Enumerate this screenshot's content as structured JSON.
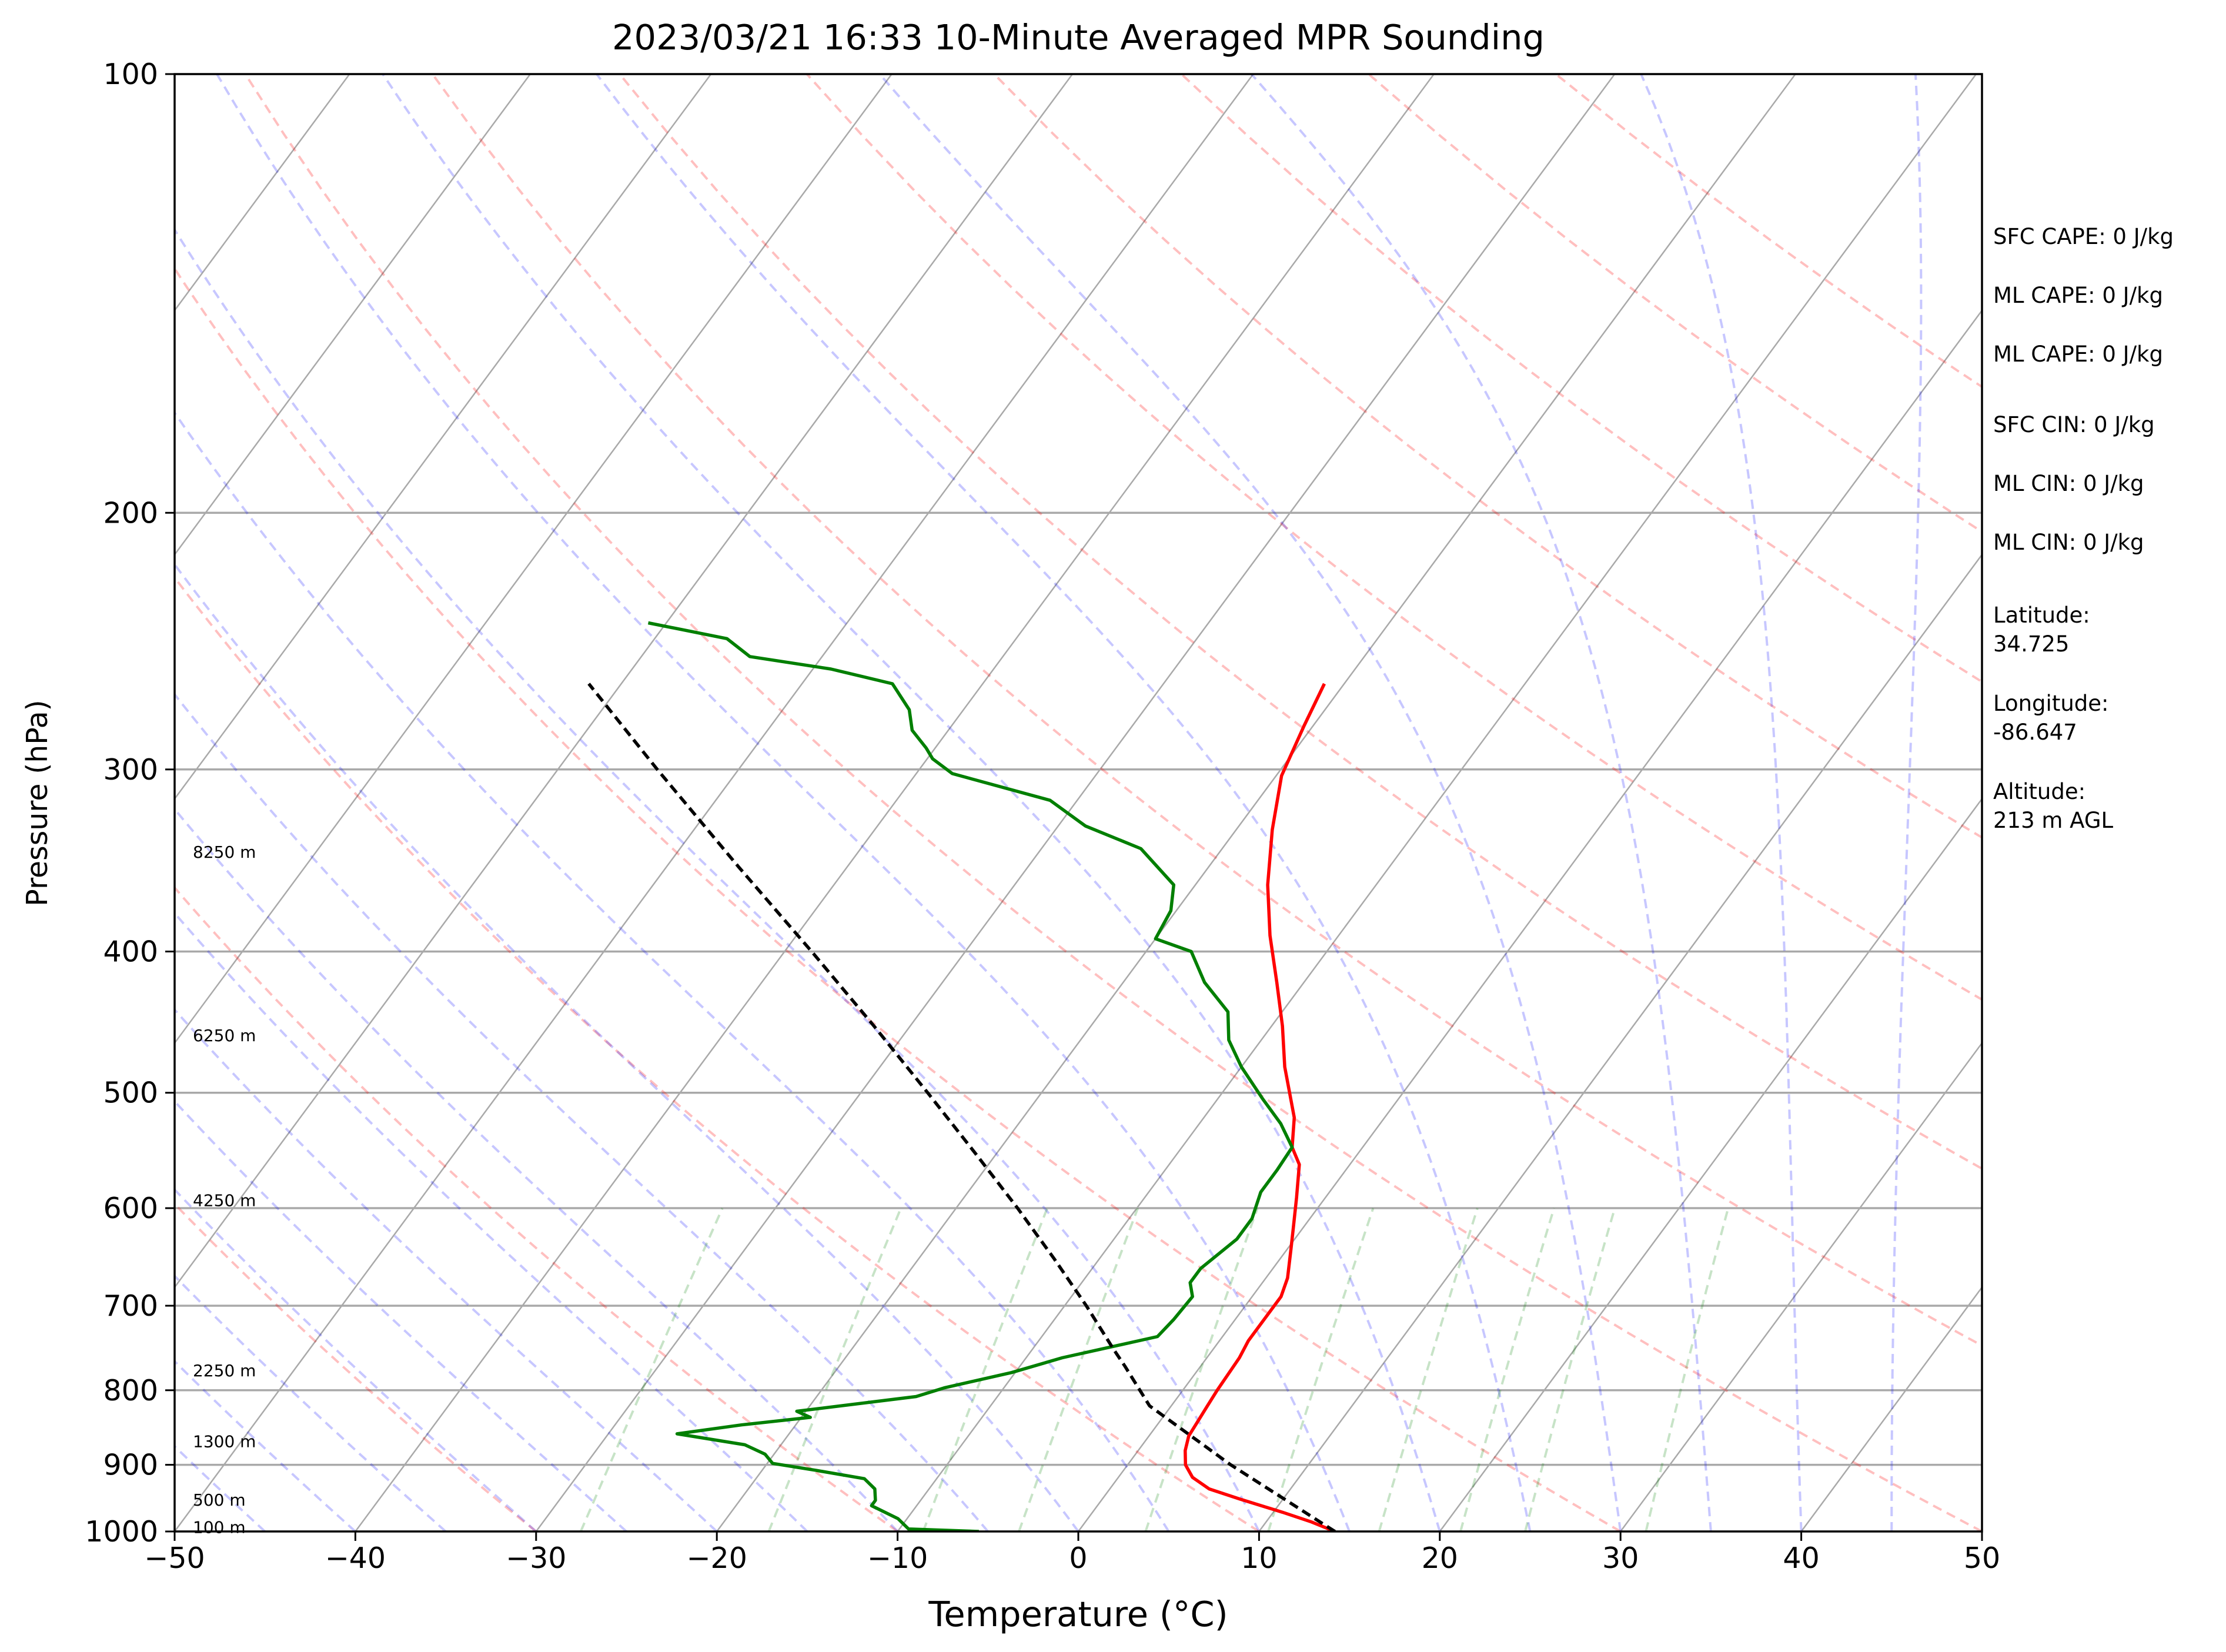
{
  "chart_data": {
    "type": "line",
    "title": "2023/03/21 16:33 10-Minute Averaged MPR Sounding",
    "xlabel": "Temperature (°C)",
    "ylabel": "Pressure (hPa)",
    "xlim": [
      -50,
      50
    ],
    "ylim": [
      1000,
      100
    ],
    "y_scale": "log",
    "x_ticks": [
      "−50",
      "−40",
      "−30",
      "−20",
      "−10",
      "0",
      "10",
      "20",
      "30",
      "40",
      "50"
    ],
    "y_ticks": [
      "1000",
      "900",
      "800",
      "700",
      "600",
      "500",
      "400",
      "300",
      "200",
      "100"
    ],
    "height_labels": [
      {
        "text": "100 m",
        "p": 994
      },
      {
        "text": "500 m",
        "p": 952
      },
      {
        "text": "1300 m",
        "p": 868
      },
      {
        "text": "2250 m",
        "p": 776
      },
      {
        "text": "4250 m",
        "p": 593
      },
      {
        "text": "6250 m",
        "p": 457
      },
      {
        "text": "8250 m",
        "p": 342
      }
    ],
    "grid": true,
    "series": [
      {
        "name": "",
        "role": "temperature",
        "color": "#ff0000",
        "points": [
          {
            "p": 1000,
            "t": 14.2
          },
          {
            "p": 985,
            "t": 12.5
          },
          {
            "p": 970,
            "t": 10.5
          },
          {
            "p": 950,
            "t": 7.6
          },
          {
            "p": 935,
            "t": 5.5
          },
          {
            "p": 918,
            "t": 4.1
          },
          {
            "p": 900,
            "t": 3.2
          },
          {
            "p": 880,
            "t": 2.6
          },
          {
            "p": 860,
            "t": 2.2
          },
          {
            "p": 840,
            "t": 2.1
          },
          {
            "p": 820,
            "t": 2.0
          },
          {
            "p": 800,
            "t": 1.9
          },
          {
            "p": 760,
            "t": 1.8
          },
          {
            "p": 740,
            "t": 1.6
          },
          {
            "p": 700,
            "t": 1.6
          },
          {
            "p": 690,
            "t": 1.6
          },
          {
            "p": 670,
            "t": 1.2
          },
          {
            "p": 640,
            "t": 0.2
          },
          {
            "p": 620,
            "t": -0.5
          },
          {
            "p": 590,
            "t": -1.6
          },
          {
            "p": 560,
            "t": -2.8
          },
          {
            "p": 545,
            "t": -3.9
          },
          {
            "p": 520,
            "t": -5.0
          },
          {
            "p": 480,
            "t": -7.6
          },
          {
            "p": 450,
            "t": -9.4
          },
          {
            "p": 420,
            "t": -11.5
          },
          {
            "p": 390,
            "t": -13.8
          },
          {
            "p": 360,
            "t": -16.0
          },
          {
            "p": 330,
            "t": -18.0
          },
          {
            "p": 303,
            "t": -19.7
          },
          {
            "p": 280,
            "t": -20.5
          },
          {
            "p": 262,
            "t": -21.1
          }
        ]
      },
      {
        "name": "",
        "role": "dewpoint",
        "color": "#007f00",
        "points": [
          {
            "p": 1000,
            "t": -5.5
          },
          {
            "p": 996,
            "t": -9.5
          },
          {
            "p": 980,
            "t": -10.5
          },
          {
            "p": 960,
            "t": -12.5
          },
          {
            "p": 952,
            "t": -12.5
          },
          {
            "p": 935,
            "t": -13.0
          },
          {
            "p": 920,
            "t": -14.0
          },
          {
            "p": 908,
            "t": -17.0
          },
          {
            "p": 898,
            "t": -19.7
          },
          {
            "p": 885,
            "t": -20.5
          },
          {
            "p": 872,
            "t": -22.0
          },
          {
            "p": 857,
            "t": -26.2
          },
          {
            "p": 845,
            "t": -23.0
          },
          {
            "p": 835,
            "t": -19.5
          },
          {
            "p": 827,
            "t": -20.5
          },
          {
            "p": 808,
            "t": -14.5
          },
          {
            "p": 797,
            "t": -13.3
          },
          {
            "p": 778,
            "t": -10.2
          },
          {
            "p": 760,
            "t": -8.0
          },
          {
            "p": 735,
            "t": -3.6
          },
          {
            "p": 715,
            "t": -3.4
          },
          {
            "p": 690,
            "t": -3.3
          },
          {
            "p": 675,
            "t": -4.0
          },
          {
            "p": 660,
            "t": -4.0
          },
          {
            "p": 630,
            "t": -3.2
          },
          {
            "p": 610,
            "t": -3.2
          },
          {
            "p": 585,
            "t": -3.8
          },
          {
            "p": 565,
            "t": -3.8
          },
          {
            "p": 545,
            "t": -3.9
          },
          {
            "p": 525,
            "t": -5.5
          },
          {
            "p": 505,
            "t": -7.5
          },
          {
            "p": 480,
            "t": -10.0
          },
          {
            "p": 460,
            "t": -11.8
          },
          {
            "p": 440,
            "t": -13.0
          },
          {
            "p": 420,
            "t": -15.5
          },
          {
            "p": 400,
            "t": -17.5
          },
          {
            "p": 392,
            "t": -20.0
          },
          {
            "p": 375,
            "t": -20.3
          },
          {
            "p": 360,
            "t": -21.2
          },
          {
            "p": 340,
            "t": -24.5
          },
          {
            "p": 328,
            "t": -28.5
          },
          {
            "p": 315,
            "t": -31.5
          },
          {
            "p": 302,
            "t": -38.0
          },
          {
            "p": 295,
            "t": -39.7
          },
          {
            "p": 290,
            "t": -40.5
          },
          {
            "p": 282,
            "t": -42.0
          },
          {
            "p": 273,
            "t": -43.0
          },
          {
            "p": 262,
            "t": -45.0
          },
          {
            "p": 256,
            "t": -49.0
          },
          {
            "p": 251,
            "t": -54.0
          },
          {
            "p": 244,
            "t": -56.0
          },
          {
            "p": 238,
            "t": -61.0
          }
        ]
      },
      {
        "name": "",
        "role": "parcel",
        "color": "#000000",
        "points": [
          {
            "p": 1000,
            "t": 14.2
          },
          {
            "p": 900,
            "t": 5.7
          },
          {
            "p": 820,
            "t": -1.2
          },
          {
            "p": 770,
            "t": -4.2
          },
          {
            "p": 750,
            "t": -5.5
          },
          {
            "p": 700,
            "t": -8.8
          },
          {
            "p": 650,
            "t": -12.5
          },
          {
            "p": 600,
            "t": -16.6
          },
          {
            "p": 550,
            "t": -21.2
          },
          {
            "p": 500,
            "t": -26.3
          },
          {
            "p": 450,
            "t": -32.0
          },
          {
            "p": 400,
            "t": -38.5
          },
          {
            "p": 350,
            "t": -46.0
          },
          {
            "p": 300,
            "t": -54.5
          },
          {
            "p": 262,
            "t": -61.8
          }
        ]
      }
    ]
  },
  "info_panel": {
    "sfc_cape": "SFC CAPE: 0 J/kg",
    "ml_cape_1": "ML CAPE: 0 J/kg",
    "ml_cape_2": "ML CAPE: 0 J/kg",
    "sfc_cin": "SFC CIN: 0 J/kg",
    "ml_cin_1": "ML CIN: 0 J/kg",
    "ml_cin_2": "ML CIN: 0 J/kg",
    "latitude_label": "Latitude:",
    "latitude_value": "34.725",
    "longitude_label": "Longitude:",
    "longitude_value": "-86.647",
    "altitude_label": "Altitude:",
    "altitude_value": "213 m AGL"
  }
}
